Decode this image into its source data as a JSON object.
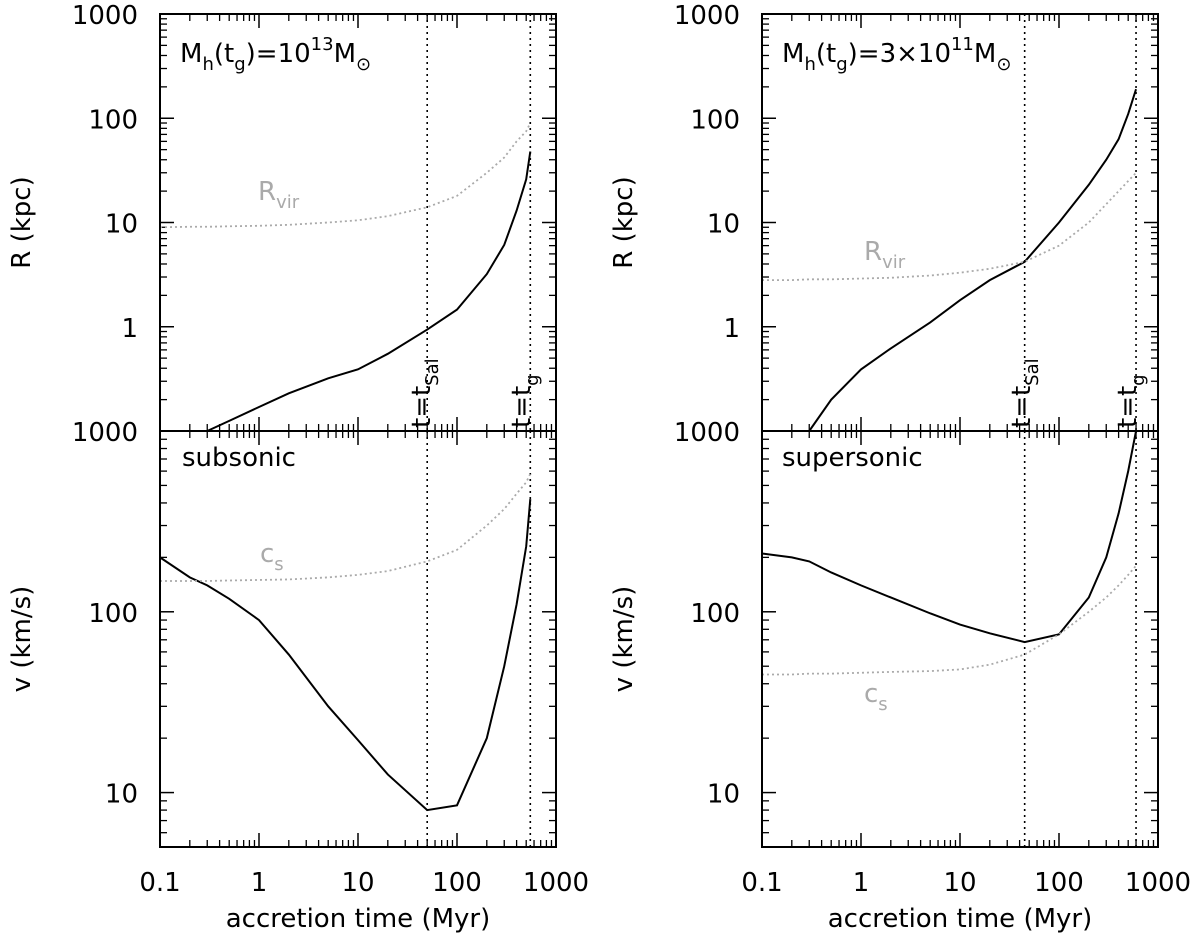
{
  "chart_data": [
    {
      "type": "line",
      "xlog": true,
      "ylog": true,
      "ylabel": "R (kpc)",
      "xlim": [
        0.1,
        1000
      ],
      "ylim": [
        0.1,
        1000
      ],
      "xticks": [
        0.1,
        1,
        10,
        100,
        1000
      ],
      "yticks": [
        1,
        10,
        100,
        1000
      ],
      "x": [
        0.1,
        0.2,
        0.3,
        0.5,
        1,
        2,
        5,
        10,
        20,
        50,
        100,
        200,
        300,
        400,
        500,
        550
      ],
      "series": [
        {
          "color": "#000000",
          "dash": "solid",
          "values": [
            null,
            null,
            0.1,
            0.125,
            0.17,
            0.23,
            0.32,
            0.39,
            0.55,
            0.94,
            1.46,
            3.2,
            6.1,
            13,
            26,
            48
          ]
        },
        {
          "color": "#aaaaaa",
          "dash": "dotted",
          "values": [
            9,
            9.1,
            9.1,
            9.2,
            9.3,
            9.5,
            10,
            10.5,
            11.5,
            14,
            18,
            30,
            42,
            60,
            75,
            90
          ]
        }
      ],
      "vlines": [
        50,
        550
      ],
      "annotations": [
        {
          "color": "#000000",
          "parts": [
            {
              "text": "M"
            },
            {
              "sub": "h"
            },
            {
              "text": "(t"
            },
            {
              "sub": "g"
            },
            {
              "text": ")=10"
            },
            {
              "sup": "13"
            },
            {
              "text": "M"
            },
            {
              "sub": "⊙"
            }
          ]
        },
        {
          "color": "#aaaaaa",
          "parts": [
            {
              "text": "R"
            },
            {
              "sub": "vir"
            }
          ]
        },
        {
          "color": "#000000",
          "parts": [
            {
              "text": "t=t"
            },
            {
              "sub": "Sal"
            }
          ]
        },
        {
          "color": "#000000",
          "parts": [
            {
              "text": "t=t"
            },
            {
              "sub": "g"
            }
          ]
        }
      ]
    },
    {
      "type": "line",
      "xlog": true,
      "ylog": true,
      "ylabel": "R (kpc)",
      "xlim": [
        0.1,
        1000
      ],
      "ylim": [
        0.1,
        1000
      ],
      "xticks": [
        0.1,
        1,
        10,
        100,
        1000
      ],
      "yticks": [
        1,
        10,
        100,
        1000
      ],
      "x": [
        0.1,
        0.2,
        0.3,
        0.5,
        1,
        2,
        5,
        10,
        20,
        45,
        100,
        200,
        300,
        400,
        500,
        600
      ],
      "series": [
        {
          "color": "#000000",
          "dash": "solid",
          "values": [
            null,
            null,
            0.1,
            0.2,
            0.39,
            0.62,
            1.1,
            1.8,
            2.8,
            4.2,
            10,
            23,
            40,
            63,
            110,
            190
          ]
        },
        {
          "color": "#aaaaaa",
          "dash": "dotted",
          "values": [
            2.8,
            2.8,
            2.85,
            2.85,
            2.9,
            2.95,
            3.1,
            3.3,
            3.6,
            4.2,
            6,
            10,
            15,
            20,
            25,
            30
          ]
        }
      ],
      "vlines": [
        45,
        600
      ],
      "annotations": [
        {
          "color": "#000000",
          "parts": [
            {
              "text": "M"
            },
            {
              "sub": "h"
            },
            {
              "text": "(t"
            },
            {
              "sub": "g"
            },
            {
              "text": ")=3×10"
            },
            {
              "sup": "11"
            },
            {
              "text": "M"
            },
            {
              "sub": "⊙"
            }
          ]
        },
        {
          "color": "#aaaaaa",
          "parts": [
            {
              "text": "R"
            },
            {
              "sub": "vir"
            }
          ]
        },
        {
          "color": "#000000",
          "parts": [
            {
              "text": "t=t"
            },
            {
              "sub": "Sal"
            }
          ]
        },
        {
          "color": "#000000",
          "parts": [
            {
              "text": "t=t"
            },
            {
              "sub": "g"
            }
          ]
        }
      ]
    },
    {
      "type": "line",
      "xlog": true,
      "ylog": true,
      "ylabel": "v (km/s)",
      "xlabel": "accretion time (Myr)",
      "xlim": [
        0.1,
        1000
      ],
      "ylim": [
        5,
        1000
      ],
      "xticks": [
        0.1,
        1,
        10,
        100,
        1000
      ],
      "yticks": [
        10,
        100,
        1000
      ],
      "x": [
        0.1,
        0.2,
        0.3,
        0.5,
        1,
        2,
        5,
        10,
        20,
        50,
        100,
        200,
        300,
        400,
        500,
        550
      ],
      "series": [
        {
          "color": "#000000",
          "dash": "solid",
          "values": [
            200,
            155,
            140,
            118,
            90,
            58,
            30,
            19.5,
            12.6,
            8,
            8.5,
            20,
            50,
            110,
            230,
            420
          ]
        },
        {
          "color": "#aaaaaa",
          "dash": "dotted",
          "values": [
            148,
            148,
            148,
            149,
            150,
            151,
            155,
            160,
            168,
            190,
            220,
            300,
            370,
            450,
            520,
            580
          ]
        }
      ],
      "vlines": [
        50,
        550
      ],
      "annotations": [
        {
          "color": "#000000",
          "parts": [
            {
              "text": "subsonic"
            }
          ]
        },
        {
          "color": "#aaaaaa",
          "parts": [
            {
              "text": "c"
            },
            {
              "sub": "s"
            }
          ]
        }
      ]
    },
    {
      "type": "line",
      "xlog": true,
      "ylog": true,
      "ylabel": "v (km/s)",
      "xlabel": "accretion time (Myr)",
      "xlim": [
        0.1,
        1000
      ],
      "ylim": [
        5,
        1000
      ],
      "xticks": [
        0.1,
        1,
        10,
        100,
        1000
      ],
      "yticks": [
        10,
        100,
        1000
      ],
      "x": [
        0.1,
        0.2,
        0.3,
        0.5,
        1,
        2,
        5,
        10,
        20,
        45,
        100,
        200,
        300,
        400,
        500,
        600
      ],
      "series": [
        {
          "color": "#000000",
          "dash": "solid",
          "values": [
            210,
            200,
            190,
            165,
            140,
            120,
            98,
            85,
            76,
            68,
            75,
            120,
            200,
            350,
            600,
            1000
          ]
        },
        {
          "color": "#aaaaaa",
          "dash": "dotted",
          "values": [
            45,
            45,
            45.5,
            45.5,
            46,
            46.5,
            47,
            48,
            51,
            58,
            75,
            100,
            120,
            140,
            160,
            180
          ]
        }
      ],
      "vlines": [
        45,
        600
      ],
      "annotations": [
        {
          "color": "#000000",
          "parts": [
            {
              "text": "supersonic"
            }
          ]
        },
        {
          "color": "#aaaaaa",
          "parts": [
            {
              "text": "c"
            },
            {
              "sub": "s"
            }
          ]
        }
      ]
    }
  ]
}
